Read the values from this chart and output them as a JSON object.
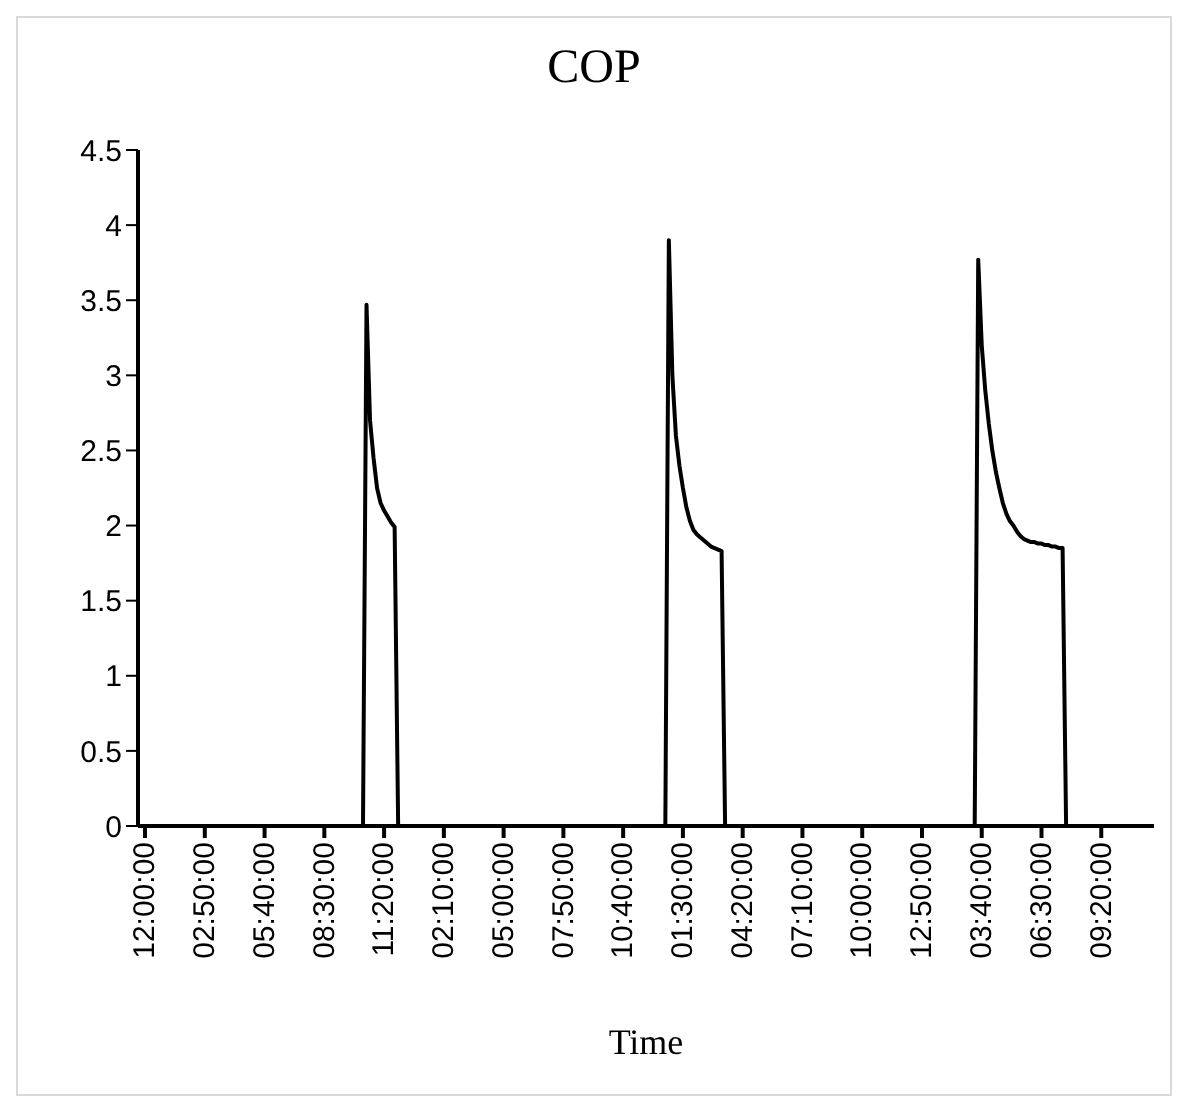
{
  "chart_data": {
    "type": "line",
    "title": "COP",
    "xlabel": "Time",
    "categories": [
      "12:00:00",
      null,
      null,
      null,
      null,
      null,
      null,
      null,
      null,
      null,
      null,
      null,
      null,
      null,
      null,
      null,
      null,
      "02:50:00",
      null,
      null,
      null,
      null,
      null,
      null,
      null,
      null,
      null,
      null,
      null,
      null,
      null,
      null,
      null,
      null,
      "05:40:00",
      null,
      null,
      null,
      null,
      null,
      null,
      null,
      null,
      null,
      null,
      null,
      null,
      null,
      null,
      null,
      null,
      "08:30:00",
      null,
      null,
      null,
      null,
      null,
      null,
      null,
      null,
      null,
      null,
      null,
      null,
      null,
      null,
      null,
      null,
      "11:20:00",
      null,
      null,
      null,
      null,
      null,
      null,
      null,
      null,
      null,
      null,
      null,
      null,
      null,
      null,
      null,
      null,
      "02:10:00",
      null,
      null,
      null,
      null,
      null,
      null,
      null,
      null,
      null,
      null,
      null,
      null,
      null,
      null,
      null,
      null,
      "05:00:00",
      null,
      null,
      null,
      null,
      null,
      null,
      null,
      null,
      null,
      null,
      null,
      null,
      null,
      null,
      null,
      null,
      "07:50:00",
      null,
      null,
      null,
      null,
      null,
      null,
      null,
      null,
      null,
      null,
      null,
      null,
      null,
      null,
      null,
      null,
      "10:40:00",
      null,
      null,
      null,
      null,
      null,
      null,
      null,
      null,
      null,
      null,
      null,
      null,
      null,
      null,
      null,
      null,
      "01:30:00",
      null,
      null,
      null,
      null,
      null,
      null,
      null,
      null,
      null,
      null,
      null,
      null,
      null,
      null,
      null,
      null,
      "04:20:00",
      null,
      null,
      null,
      null,
      null,
      null,
      null,
      null,
      null,
      null,
      null,
      null,
      null,
      null,
      null,
      null,
      "07:10:00",
      null,
      null,
      null,
      null,
      null,
      null,
      null,
      null,
      null,
      null,
      null,
      null,
      null,
      null,
      null,
      null,
      "10:00:00",
      null,
      null,
      null,
      null,
      null,
      null,
      null,
      null,
      null,
      null,
      null,
      null,
      null,
      null,
      null,
      null,
      "12:50:00",
      null,
      null,
      null,
      null,
      null,
      null,
      null,
      null,
      null,
      null,
      null,
      null,
      null,
      null,
      null,
      null,
      "03:40:00",
      null,
      null,
      null,
      null,
      null,
      null,
      null,
      null,
      null,
      null,
      null,
      null,
      null,
      null,
      null,
      null,
      "06:30:00",
      null,
      null,
      null,
      null,
      null,
      null,
      null,
      null,
      null,
      null,
      null,
      null,
      null,
      null,
      null,
      null,
      "09:20:00",
      null,
      null,
      null,
      null,
      null,
      null,
      null,
      null,
      null,
      null,
      null,
      null,
      null,
      null,
      null
    ],
    "series": [
      {
        "color": "#000000",
        "values": [
          0,
          0,
          0,
          0,
          0,
          0,
          0,
          0,
          0,
          0,
          0,
          0,
          0,
          0,
          0,
          0,
          0,
          0,
          0,
          0,
          0,
          0,
          0,
          0,
          0,
          0,
          0,
          0,
          0,
          0,
          0,
          0,
          0,
          0,
          0,
          0,
          0,
          0,
          0,
          0,
          0,
          0,
          0,
          0,
          0,
          0,
          0,
          0,
          0,
          0,
          0,
          0,
          0,
          0,
          0,
          0,
          0,
          0,
          0,
          0,
          0,
          0,
          0,
          3.47,
          2.7,
          2.45,
          2.25,
          2.15,
          2.1,
          2.06,
          2.02,
          1.99,
          0,
          0,
          0,
          0,
          0,
          0,
          0,
          0,
          0,
          0,
          0,
          0,
          0,
          0,
          0,
          0,
          0,
          0,
          0,
          0,
          0,
          0,
          0,
          0,
          0,
          0,
          0,
          0,
          0,
          0,
          0,
          0,
          0,
          0,
          0,
          0,
          0,
          0,
          0,
          0,
          0,
          0,
          0,
          0,
          0,
          0,
          0,
          0,
          0,
          0,
          0,
          0,
          0,
          0,
          0,
          0,
          0,
          0,
          0,
          0,
          0,
          0,
          0,
          0,
          0,
          0,
          0,
          0,
          0,
          0,
          0,
          0,
          0,
          0,
          0,
          0,
          0,
          3.9,
          3.0,
          2.6,
          2.4,
          2.25,
          2.12,
          2.03,
          1.97,
          1.94,
          1.92,
          1.9,
          1.88,
          1.86,
          1.85,
          1.84,
          1.83,
          0,
          0,
          0,
          0,
          0,
          0,
          0,
          0,
          0,
          0,
          0,
          0,
          0,
          0,
          0,
          0,
          0,
          0,
          0,
          0,
          0,
          0,
          0,
          0,
          0,
          0,
          0,
          0,
          0,
          0,
          0,
          0,
          0,
          0,
          0,
          0,
          0,
          0,
          0,
          0,
          0,
          0,
          0,
          0,
          0,
          0,
          0,
          0,
          0,
          0,
          0,
          0,
          0,
          0,
          0,
          0,
          0,
          0,
          0,
          0,
          0,
          0,
          0,
          0,
          0,
          0,
          0,
          0,
          0,
          0,
          0,
          0,
          3.77,
          3.2,
          2.9,
          2.68,
          2.5,
          2.36,
          2.25,
          2.15,
          2.08,
          2.03,
          2.0,
          1.96,
          1.93,
          1.91,
          1.9,
          1.89,
          1.89,
          1.88,
          1.88,
          1.87,
          1.87,
          1.86,
          1.86,
          1.85,
          1.85,
          0,
          0,
          0,
          0,
          0,
          0,
          0,
          0,
          0,
          0,
          0,
          0,
          0,
          0,
          0,
          0,
          0,
          0,
          0,
          0,
          0,
          0,
          0,
          0,
          0,
          0
        ]
      }
    ],
    "ylim": [
      0,
      4.5
    ],
    "yticks": [
      0,
      0.5,
      1,
      1.5,
      2,
      2.5,
      3,
      3.5,
      4,
      4.5
    ],
    "grid": false,
    "legend": false,
    "marker": "none",
    "line_style": "solid"
  }
}
